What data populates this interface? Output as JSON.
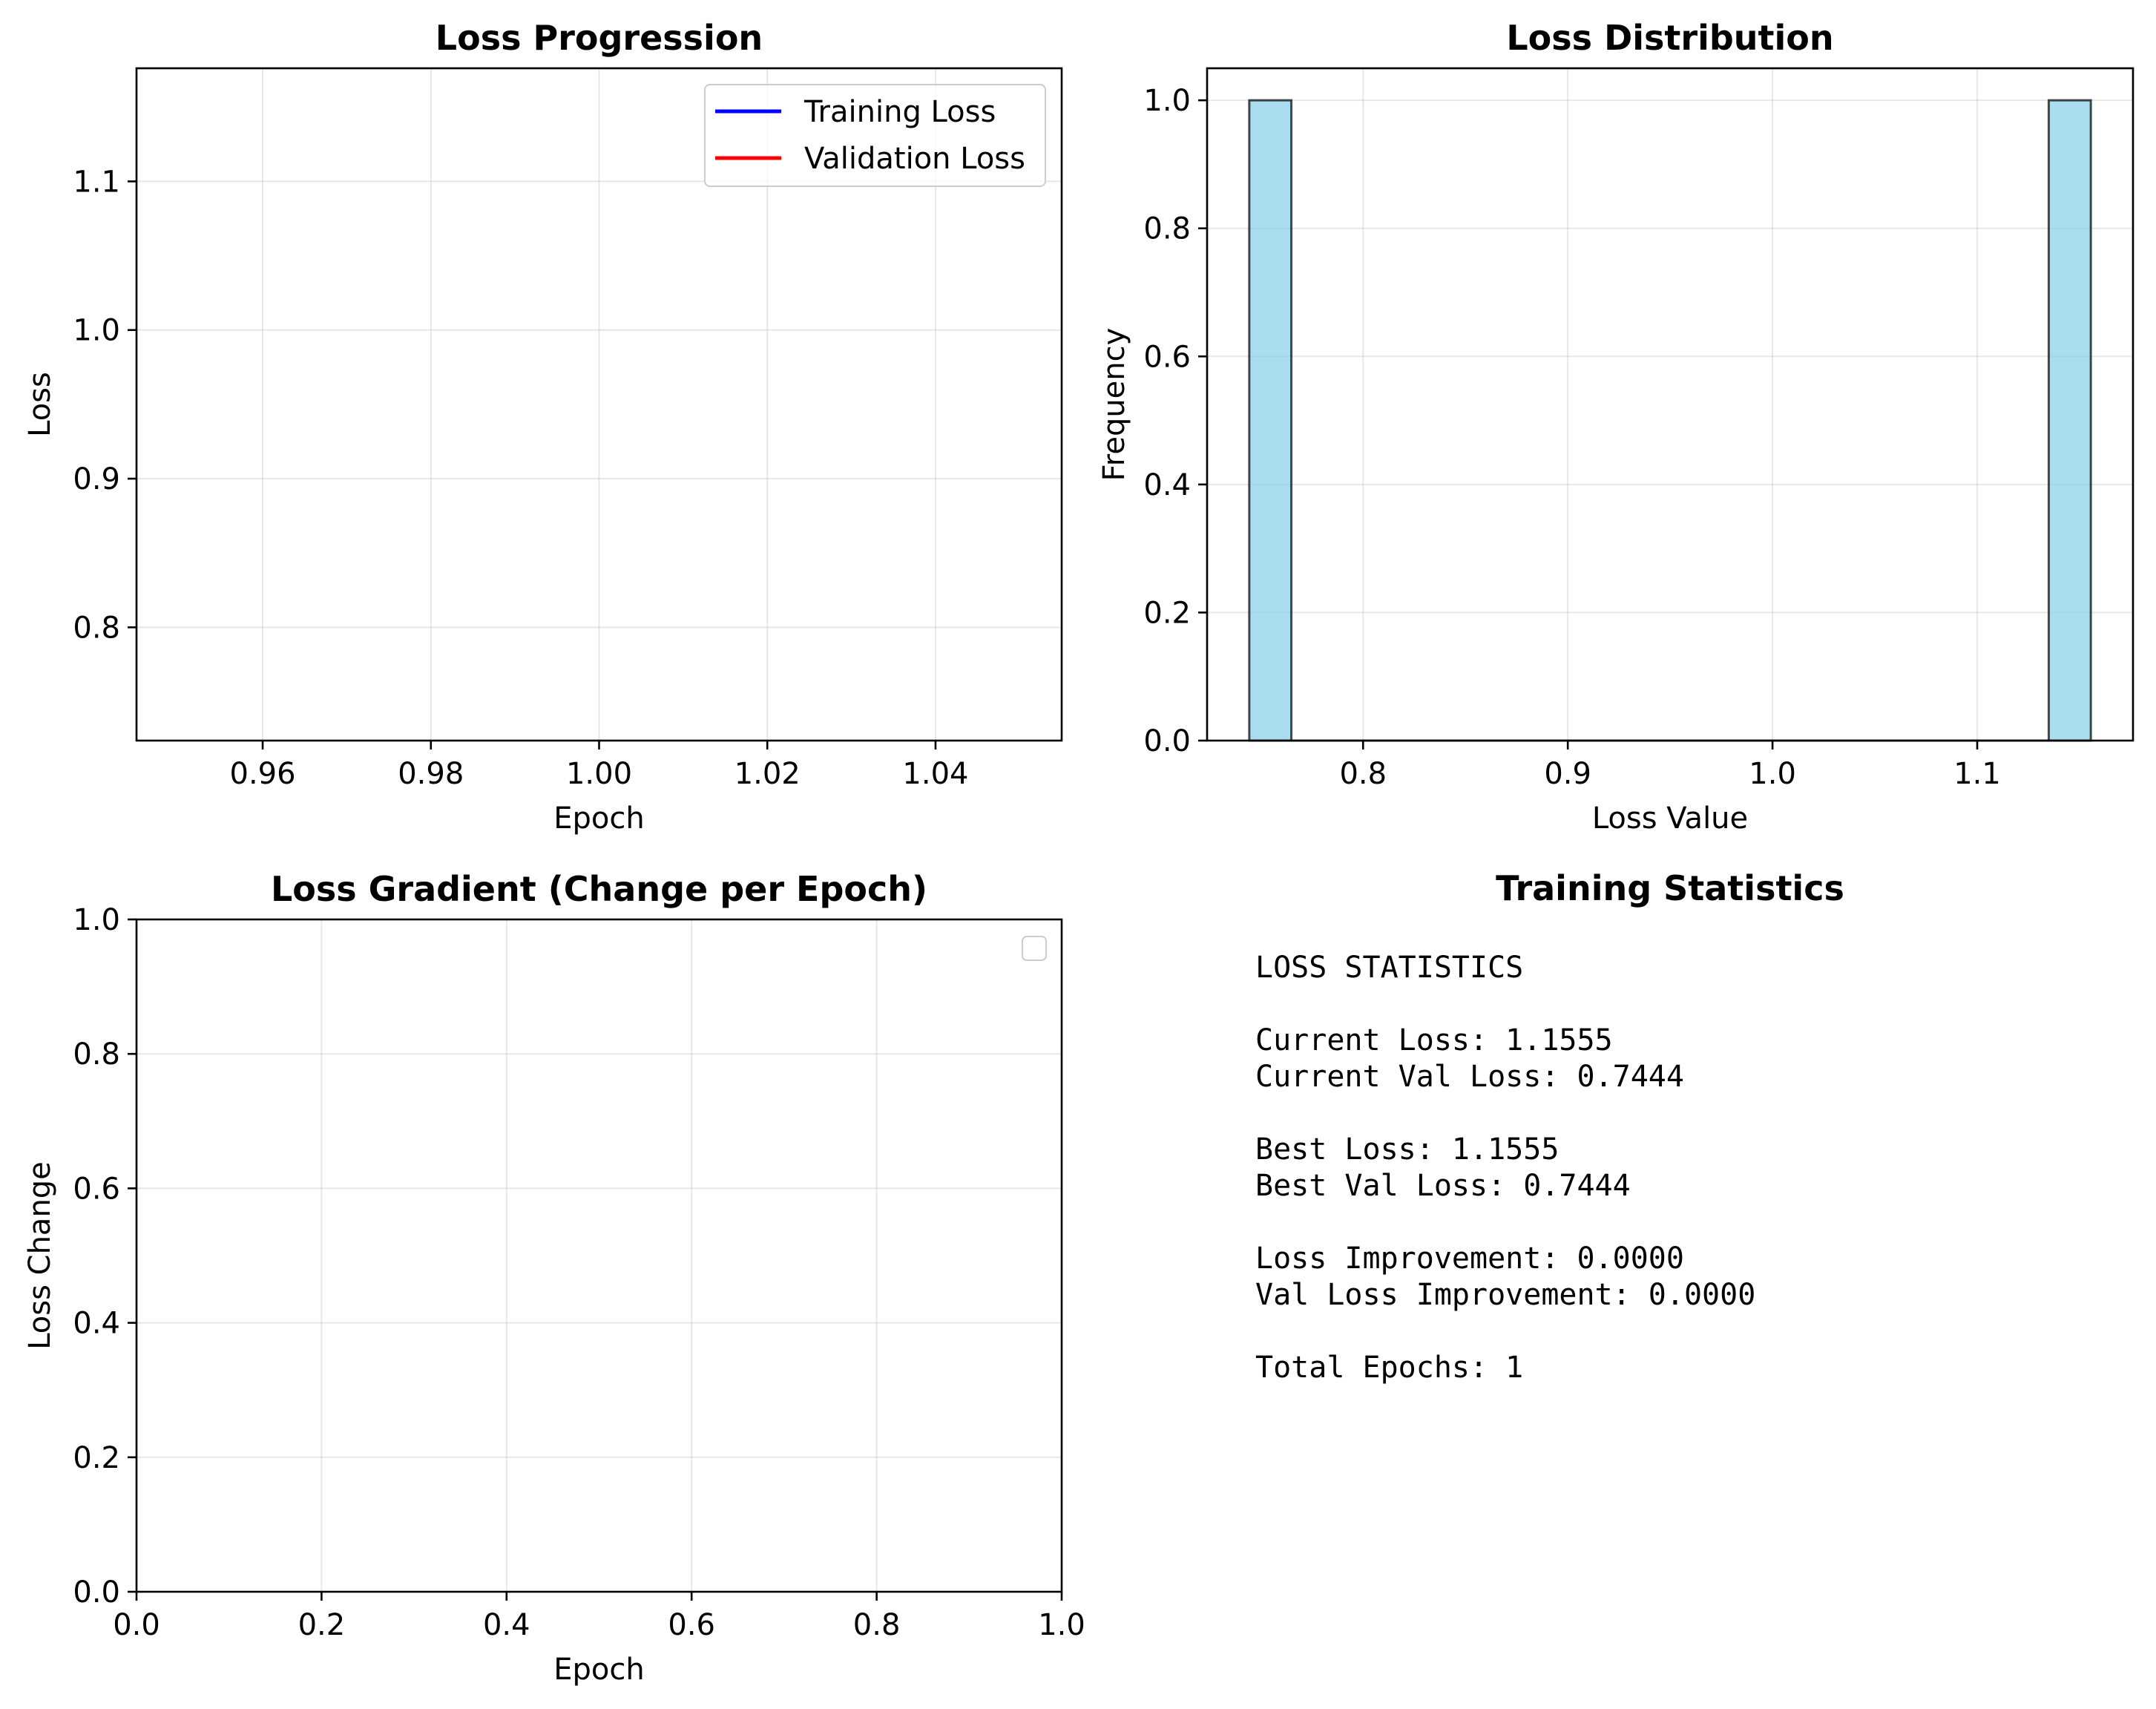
{
  "colors": {
    "training": "#0000ff",
    "validation": "#ff0000",
    "hist_fill": "#87ceeb",
    "hist_edge": "#000000"
  },
  "chart_data": [
    {
      "id": "loss-progression",
      "type": "line",
      "title": "Loss Progression",
      "xlabel": "Epoch",
      "ylabel": "Loss",
      "xlim": [
        0.945,
        1.055
      ],
      "ylim": [
        0.7238,
        1.1761
      ],
      "xticks": [
        "0.96",
        "0.98",
        "1.00",
        "1.02",
        "1.04"
      ],
      "xtick_values": [
        0.96,
        0.98,
        1.0,
        1.02,
        1.04
      ],
      "yticks": [
        "0.8",
        "0.9",
        "1.0",
        "1.1"
      ],
      "ytick_values": [
        0.8,
        0.9,
        1.0,
        1.1
      ],
      "grid": true,
      "legend_position": "top-right",
      "series": [
        {
          "name": "Training Loss",
          "x": [
            1
          ],
          "values": [
            1.1555
          ]
        },
        {
          "name": "Validation Loss",
          "x": [
            1
          ],
          "values": [
            0.7444
          ]
        }
      ]
    },
    {
      "id": "loss-distribution",
      "type": "bar",
      "title": "Loss Distribution",
      "xlabel": "Loss Value",
      "ylabel": "Frequency",
      "xlim": [
        0.7238,
        1.1761
      ],
      "ylim": [
        0,
        1.05
      ],
      "xticks": [
        "0.8",
        "0.9",
        "1.0",
        "1.1"
      ],
      "xtick_values": [
        0.8,
        0.9,
        1.0,
        1.1
      ],
      "yticks": [
        "0.0",
        "0.2",
        "0.4",
        "0.6",
        "0.8",
        "1.0"
      ],
      "ytick_values": [
        0,
        0.2,
        0.4,
        0.6,
        0.8,
        1.0
      ],
      "grid": true,
      "bins": [
        {
          "x0": 0.7444,
          "x1": 0.76496,
          "count": 1
        },
        {
          "x0": 1.13494,
          "x1": 1.1555,
          "count": 1
        }
      ]
    },
    {
      "id": "loss-gradient",
      "type": "line",
      "title": "Loss Gradient (Change per Epoch)",
      "xlabel": "Epoch",
      "ylabel": "Loss Change",
      "xlim": [
        0,
        1
      ],
      "ylim": [
        0,
        1
      ],
      "xticks": [
        "0.0",
        "0.2",
        "0.4",
        "0.6",
        "0.8",
        "1.0"
      ],
      "xtick_values": [
        0,
        0.2,
        0.4,
        0.6,
        0.8,
        1.0
      ],
      "yticks": [
        "0.0",
        "0.2",
        "0.4",
        "0.6",
        "0.8",
        "1.0"
      ],
      "ytick_values": [
        0,
        0.2,
        0.4,
        0.6,
        0.8,
        1.0
      ],
      "grid": true,
      "legend_position": "top-right",
      "series": []
    }
  ],
  "stats_panel": {
    "title": "Training Statistics",
    "lines": [
      "LOSS STATISTICS",
      "",
      "Current Loss: 1.1555",
      "Current Val Loss: 0.7444",
      "",
      "Best Loss: 1.1555",
      "Best Val Loss: 0.7444",
      "",
      "Loss Improvement: 0.0000",
      "Val Loss Improvement: 0.0000",
      "",
      "Total Epochs: 1"
    ]
  }
}
